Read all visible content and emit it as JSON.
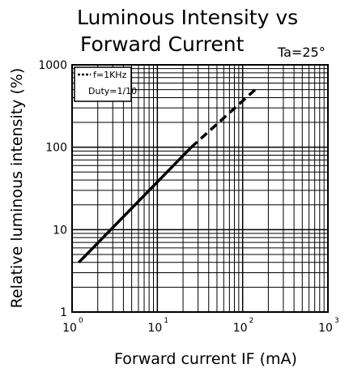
{
  "chart_data": {
    "type": "line",
    "title_line1": "Luminous Intensity vs",
    "title_line2": "Forward Current",
    "condition": "Ta=25°",
    "xlabel": "Forward current IF (mA)",
    "ylabel": "Relative luminous intensity (%)",
    "x_scale": "log",
    "y_scale": "log",
    "xlim": [
      1,
      1000
    ],
    "ylim": [
      1,
      1000
    ],
    "grid": true,
    "x_ticks": [
      {
        "base": "10",
        "exp": "0"
      },
      {
        "base": "10",
        "exp": "1"
      },
      {
        "base": "10",
        "exp": "2"
      },
      {
        "base": "10",
        "exp": "3"
      }
    ],
    "y_ticks": [
      "1",
      "10",
      "100",
      "1000"
    ],
    "legend": {
      "placement": "top-left",
      "line1": "f=1KHz",
      "line2": "Duty=1/10"
    },
    "series": [
      {
        "line_style": "solid",
        "x": [
          1.2,
          25
        ],
        "y": [
          4,
          100
        ]
      },
      {
        "name": "f=1KHz Duty=1/10",
        "line_style": "dashed",
        "x": [
          25,
          140
        ],
        "y": [
          100,
          500
        ]
      }
    ]
  }
}
